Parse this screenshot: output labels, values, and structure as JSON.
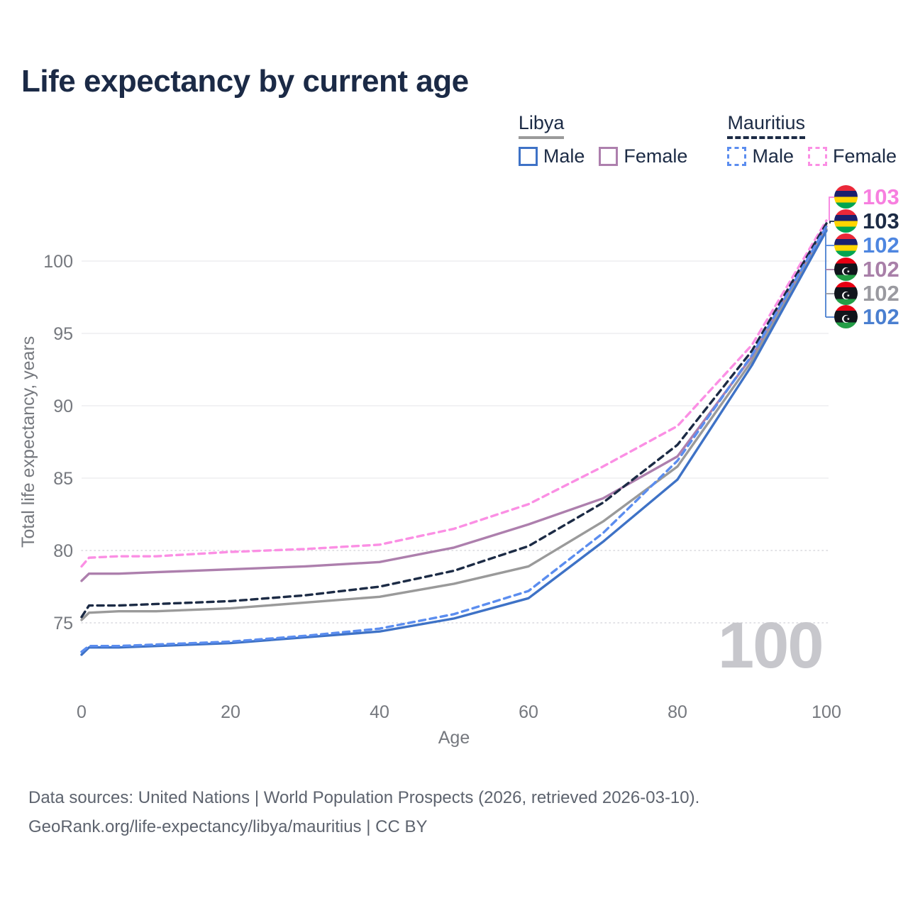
{
  "page": {
    "title": "Life expectancy by current age"
  },
  "legend": {
    "libya": {
      "title": "Libya",
      "male": "Male",
      "female": "Female",
      "all_color": "#9a9a9a",
      "male_color": "#3e72c6",
      "female_color": "#ad7fad"
    },
    "mauritius": {
      "title": "Mauritius",
      "male": "Male",
      "female": "Female",
      "all_color": "#1c2b45",
      "male_color": "#5b8def",
      "female_color": "#fb8fe4"
    }
  },
  "watermark": "100",
  "end_labels": [
    {
      "value": "103",
      "country": "Mauritius",
      "series": "Mauritius Female",
      "color": "#f77fdf",
      "flag_icon": "mauritius-flag"
    },
    {
      "value": "103",
      "country": "Mauritius",
      "series": "Mauritius Both sexes",
      "color": "#1c2b45",
      "flag_icon": "mauritius-flag"
    },
    {
      "value": "102",
      "country": "Mauritius",
      "series": "Mauritius Male",
      "color": "#4e86e0",
      "flag_icon": "mauritius-flag"
    },
    {
      "value": "102",
      "country": "Libya",
      "series": "Libya Female",
      "color": "#a87fa8",
      "flag_icon": "libya-flag"
    },
    {
      "value": "102",
      "country": "Libya",
      "series": "Libya Both sexes",
      "color": "#9a9aa0",
      "flag_icon": "libya-flag"
    },
    {
      "value": "102",
      "country": "Libya",
      "series": "Libya Male",
      "color": "#4a7fd0",
      "flag_icon": "libya-flag"
    }
  ],
  "footer": {
    "line1": "Data sources: United Nations | World Population Prospects (2026, retrieved 2026-03-10).",
    "line2": "GeoRank.org/life-expectancy/libya/mauritius | CC BY"
  },
  "chart_data": {
    "type": "line",
    "title": "Life expectancy by current age",
    "xlabel": "Age",
    "ylabel": "Total life expectancy, years",
    "x_ticks": [
      0,
      20,
      40,
      60,
      80,
      100
    ],
    "y_ticks": [
      75,
      80,
      85,
      90,
      95,
      100
    ],
    "xlim": [
      0,
      100
    ],
    "ylim": [
      70,
      105
    ],
    "grid": "horizontal only; solid lines at 85-100, dotted at 75-80",
    "legend_position": "top-right",
    "ages": [
      0,
      1,
      5,
      10,
      20,
      30,
      40,
      50,
      60,
      70,
      80,
      90,
      100
    ],
    "series": [
      {
        "name": "Mauritius Female",
        "country": "Mauritius",
        "sex": "Female",
        "color": "#fb8fe4",
        "dash": true,
        "values": [
          78.9,
          79.5,
          79.6,
          79.6,
          79.9,
          80.1,
          80.4,
          81.5,
          83.2,
          85.8,
          88.6,
          94.2,
          102.8
        ]
      },
      {
        "name": "Mauritius Both sexes",
        "country": "Mauritius",
        "sex": "Both",
        "color": "#1c2b45",
        "dash": true,
        "values": [
          75.4,
          76.2,
          76.2,
          76.3,
          76.5,
          76.9,
          77.5,
          78.6,
          80.3,
          83.3,
          87.3,
          93.8,
          102.6
        ]
      },
      {
        "name": "Mauritius Male",
        "country": "Mauritius",
        "sex": "Male",
        "color": "#5b8def",
        "dash": true,
        "values": [
          73.0,
          73.4,
          73.4,
          73.5,
          73.7,
          74.1,
          74.6,
          75.6,
          77.2,
          81.2,
          86.2,
          93.5,
          102.4
        ]
      },
      {
        "name": "Libya Female",
        "country": "Libya",
        "sex": "Female",
        "color": "#ad7fad",
        "dash": false,
        "values": [
          77.9,
          78.4,
          78.4,
          78.5,
          78.7,
          78.9,
          79.2,
          80.2,
          81.8,
          83.6,
          86.5,
          93.4,
          102.4
        ]
      },
      {
        "name": "Libya Both sexes",
        "country": "Libya",
        "sex": "Both",
        "color": "#9a9a9a",
        "dash": false,
        "values": [
          75.2,
          75.7,
          75.8,
          75.8,
          76.0,
          76.4,
          76.8,
          77.7,
          78.9,
          82.0,
          85.8,
          93.1,
          102.2
        ]
      },
      {
        "name": "Libya Male",
        "country": "Libya",
        "sex": "Male",
        "color": "#3e72c6",
        "dash": false,
        "values": [
          72.8,
          73.3,
          73.3,
          73.4,
          73.6,
          74.0,
          74.4,
          75.3,
          76.7,
          80.6,
          84.9,
          92.8,
          102.1
        ]
      }
    ]
  }
}
